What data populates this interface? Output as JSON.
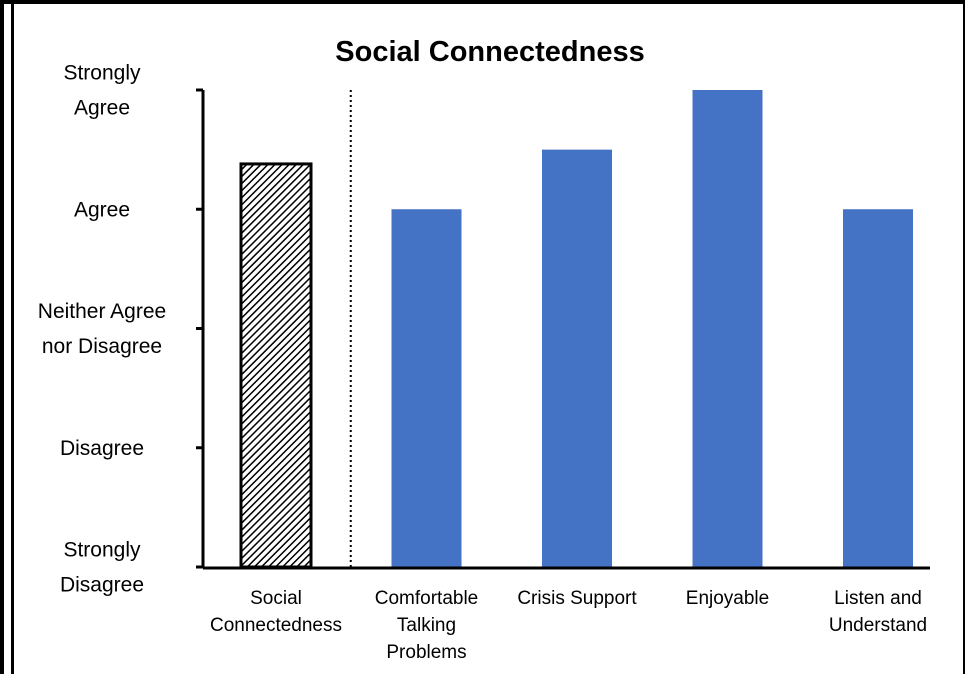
{
  "chart_data": {
    "type": "bar",
    "title": "Social Connectedness",
    "xlabel": "",
    "ylabel": "",
    "ylim": [
      1,
      5
    ],
    "y_tick_values": [
      1,
      2,
      3,
      4,
      5
    ],
    "y_tick_labels": [
      [
        "Strongly",
        "Disagree"
      ],
      [
        "Disagree"
      ],
      [
        "Neither Agree",
        "nor Disagree"
      ],
      [
        "Agree"
      ],
      [
        "Strongly",
        "Agree"
      ]
    ],
    "categories": [
      [
        "Social",
        "Connectedness"
      ],
      [
        "Comfortable",
        "Talking",
        "Problems"
      ],
      [
        "Crisis Support"
      ],
      [
        "Enjoyable"
      ],
      [
        "Listen and",
        "Understand"
      ]
    ],
    "values": [
      4.38,
      4.0,
      4.5,
      5.0,
      4.0
    ],
    "bar_styles": [
      "hatched",
      "solid",
      "solid",
      "solid",
      "solid"
    ],
    "colors": {
      "bar": "#4472C4",
      "hatch": "#000000",
      "axis": "#000000"
    },
    "separator": "dotted line after first bar",
    "grid": false,
    "legend": "none"
  }
}
